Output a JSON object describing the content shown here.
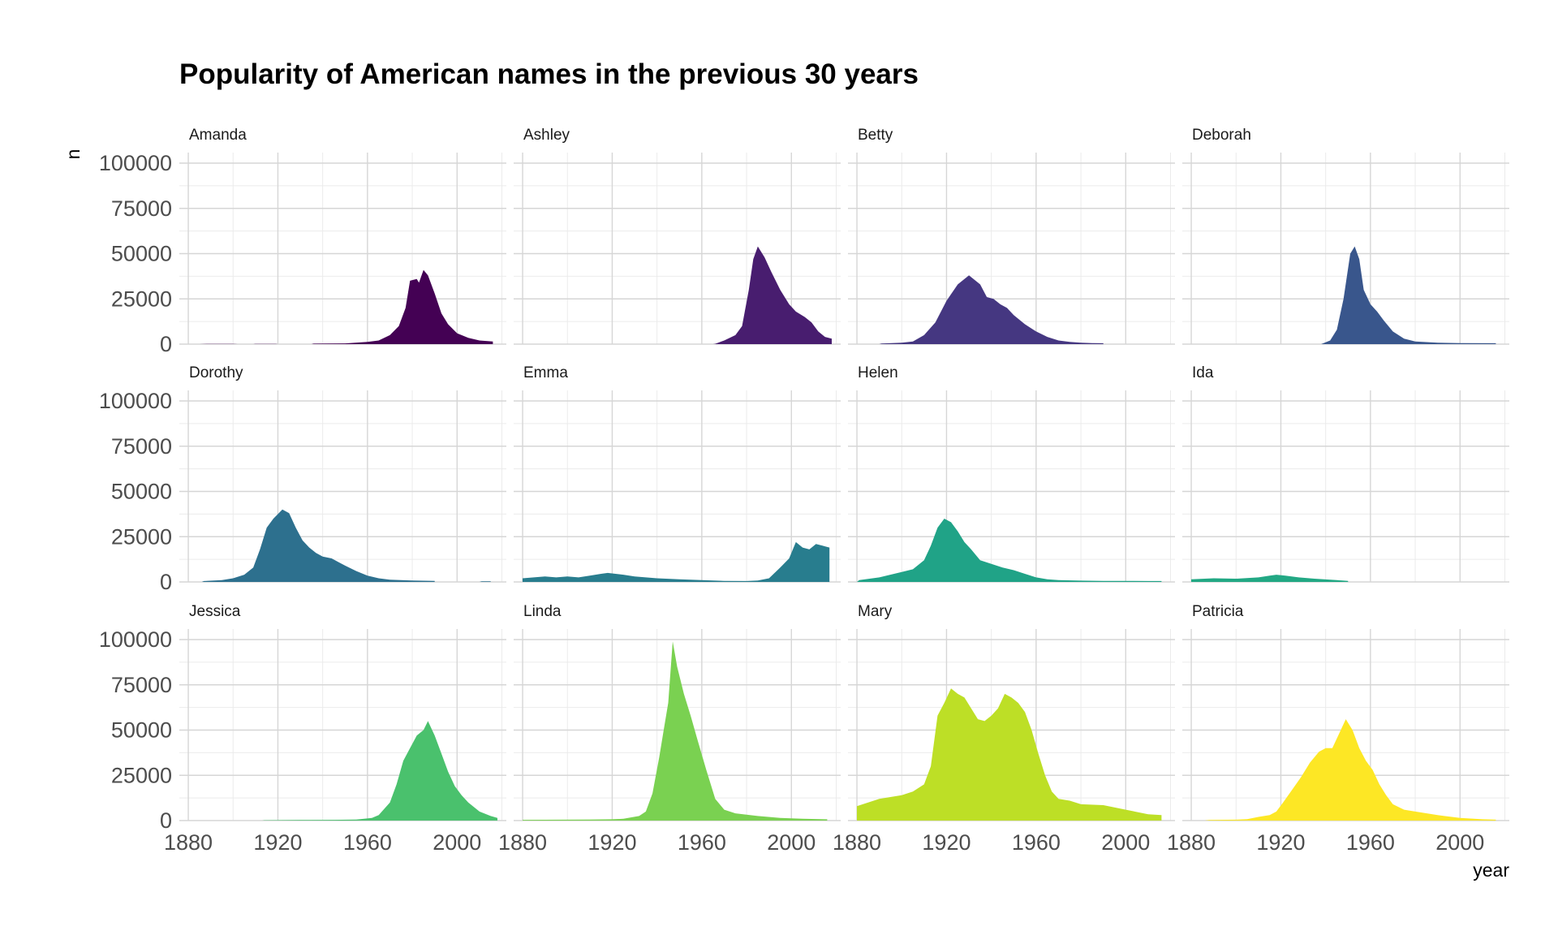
{
  "chart_data": {
    "type": "area",
    "title": "Popularity of American names in the previous 30 years",
    "xlabel": "year",
    "ylabel": "n",
    "xlim": [
      1876,
      2022
    ],
    "ylim": [
      0,
      100000
    ],
    "x_ticks": [
      1880,
      1920,
      1960,
      2000
    ],
    "y_ticks": [
      0,
      25000,
      50000,
      75000,
      100000
    ],
    "grid": true,
    "facets": [
      {
        "name": "Amanda",
        "color": "#440154",
        "points": [
          [
            1885,
            0
          ],
          [
            1889,
            150
          ],
          [
            1900,
            150
          ],
          [
            1902,
            0
          ],
          [
            1909,
            0
          ],
          [
            1910,
            130
          ],
          [
            1919,
            130
          ],
          [
            1920,
            0
          ],
          [
            1935,
            0
          ],
          [
            1936,
            250
          ],
          [
            1950,
            400
          ],
          [
            1960,
            1200
          ],
          [
            1965,
            2000
          ],
          [
            1970,
            5000
          ],
          [
            1974,
            10000
          ],
          [
            1977,
            20000
          ],
          [
            1979,
            35000
          ],
          [
            1982,
            36000
          ],
          [
            1983,
            34000
          ],
          [
            1985,
            41000
          ],
          [
            1987,
            38000
          ],
          [
            1990,
            28000
          ],
          [
            1993,
            17000
          ],
          [
            1996,
            11000
          ],
          [
            2000,
            6000
          ],
          [
            2005,
            3500
          ],
          [
            2010,
            2000
          ],
          [
            2016,
            1500
          ],
          [
            2016,
            0
          ]
        ]
      },
      {
        "name": "Ashley",
        "color": "#481d6f",
        "points": [
          [
            1965,
            0
          ],
          [
            1966,
            200
          ],
          [
            1970,
            2000
          ],
          [
            1975,
            5000
          ],
          [
            1978,
            10000
          ],
          [
            1981,
            30000
          ],
          [
            1983,
            47000
          ],
          [
            1985,
            54000
          ],
          [
            1988,
            48000
          ],
          [
            1991,
            40000
          ],
          [
            1995,
            30000
          ],
          [
            1999,
            22000
          ],
          [
            2002,
            18000
          ],
          [
            2006,
            15000
          ],
          [
            2009,
            12000
          ],
          [
            2012,
            7000
          ],
          [
            2015,
            4000
          ],
          [
            2018,
            3000
          ],
          [
            2018,
            0
          ]
        ]
      },
      {
        "name": "Betty",
        "color": "#453781",
        "points": [
          [
            1890,
            0
          ],
          [
            1891,
            300
          ],
          [
            1900,
            800
          ],
          [
            1905,
            1500
          ],
          [
            1910,
            5000
          ],
          [
            1915,
            12000
          ],
          [
            1920,
            24000
          ],
          [
            1925,
            33000
          ],
          [
            1930,
            38000
          ],
          [
            1935,
            33000
          ],
          [
            1938,
            26000
          ],
          [
            1941,
            25000
          ],
          [
            1944,
            22000
          ],
          [
            1947,
            20000
          ],
          [
            1950,
            16000
          ],
          [
            1955,
            11000
          ],
          [
            1960,
            7000
          ],
          [
            1965,
            4000
          ],
          [
            1970,
            2000
          ],
          [
            1975,
            1200
          ],
          [
            1980,
            800
          ],
          [
            1985,
            600
          ],
          [
            1990,
            500
          ],
          [
            1990,
            0
          ]
        ]
      },
      {
        "name": "Deborah",
        "color": "#39568c",
        "points": [
          [
            1938,
            0
          ],
          [
            1939,
            500
          ],
          [
            1942,
            2000
          ],
          [
            1945,
            8000
          ],
          [
            1948,
            25000
          ],
          [
            1951,
            50000
          ],
          [
            1953,
            54000
          ],
          [
            1955,
            47000
          ],
          [
            1957,
            30000
          ],
          [
            1960,
            22000
          ],
          [
            1963,
            18000
          ],
          [
            1966,
            13000
          ],
          [
            1970,
            7000
          ],
          [
            1975,
            3000
          ],
          [
            1980,
            1500
          ],
          [
            1990,
            800
          ],
          [
            2000,
            600
          ],
          [
            2016,
            500
          ],
          [
            2016,
            0
          ]
        ]
      },
      {
        "name": "Dorothy",
        "color": "#2d708e",
        "points": [
          [
            1886,
            0
          ],
          [
            1887,
            500
          ],
          [
            1895,
            1000
          ],
          [
            1900,
            2000
          ],
          [
            1905,
            4000
          ],
          [
            1909,
            8000
          ],
          [
            1912,
            18000
          ],
          [
            1915,
            30000
          ],
          [
            1918,
            35000
          ],
          [
            1922,
            40000
          ],
          [
            1925,
            38000
          ],
          [
            1928,
            30000
          ],
          [
            1931,
            23000
          ],
          [
            1934,
            19000
          ],
          [
            1937,
            16000
          ],
          [
            1940,
            14000
          ],
          [
            1944,
            13000
          ],
          [
            1947,
            11000
          ],
          [
            1950,
            9000
          ],
          [
            1955,
            6000
          ],
          [
            1960,
            3500
          ],
          [
            1965,
            2000
          ],
          [
            1970,
            1200
          ],
          [
            1980,
            800
          ],
          [
            1990,
            600
          ],
          [
            1990,
            0
          ],
          [
            2010,
            0
          ],
          [
            2011,
            300
          ],
          [
            2015,
            300
          ],
          [
            2015,
            0
          ]
        ]
      },
      {
        "name": "Emma",
        "color": "#287d8e",
        "points": [
          [
            1880,
            0
          ],
          [
            1880,
            2000
          ],
          [
            1885,
            2500
          ],
          [
            1890,
            3000
          ],
          [
            1895,
            2500
          ],
          [
            1900,
            3000
          ],
          [
            1905,
            2500
          ],
          [
            1910,
            3500
          ],
          [
            1915,
            4500
          ],
          [
            1918,
            5000
          ],
          [
            1925,
            4000
          ],
          [
            1930,
            3000
          ],
          [
            1940,
            2000
          ],
          [
            1950,
            1500
          ],
          [
            1960,
            1000
          ],
          [
            1970,
            600
          ],
          [
            1980,
            500
          ],
          [
            1985,
            800
          ],
          [
            1990,
            2000
          ],
          [
            1995,
            8000
          ],
          [
            1999,
            13000
          ],
          [
            2002,
            22000
          ],
          [
            2005,
            19000
          ],
          [
            2008,
            18000
          ],
          [
            2011,
            21000
          ],
          [
            2014,
            20000
          ],
          [
            2017,
            19000
          ],
          [
            2017,
            0
          ]
        ]
      },
      {
        "name": "Helen",
        "color": "#20a387",
        "points": [
          [
            1880,
            0
          ],
          [
            1881,
            1000
          ],
          [
            1890,
            2500
          ],
          [
            1900,
            5500
          ],
          [
            1905,
            7000
          ],
          [
            1910,
            12000
          ],
          [
            1913,
            20000
          ],
          [
            1916,
            30000
          ],
          [
            1919,
            35000
          ],
          [
            1922,
            33000
          ],
          [
            1925,
            28000
          ],
          [
            1928,
            22000
          ],
          [
            1931,
            18000
          ],
          [
            1935,
            12000
          ],
          [
            1940,
            10000
          ],
          [
            1945,
            8000
          ],
          [
            1950,
            6500
          ],
          [
            1955,
            4500
          ],
          [
            1960,
            2500
          ],
          [
            1965,
            1500
          ],
          [
            1970,
            1000
          ],
          [
            1980,
            700
          ],
          [
            1990,
            600
          ],
          [
            2000,
            600
          ],
          [
            2010,
            500
          ],
          [
            2016,
            500
          ],
          [
            2016,
            0
          ]
        ]
      },
      {
        "name": "Ida",
        "color": "#22a884",
        "points": [
          [
            1880,
            0
          ],
          [
            1880,
            1500
          ],
          [
            1890,
            2000
          ],
          [
            1900,
            1800
          ],
          [
            1910,
            2500
          ],
          [
            1915,
            3500
          ],
          [
            1918,
            4000
          ],
          [
            1922,
            3500
          ],
          [
            1928,
            2500
          ],
          [
            1935,
            1800
          ],
          [
            1945,
            1000
          ],
          [
            1950,
            600
          ],
          [
            1950,
            0
          ]
        ]
      },
      {
        "name": "Jessica",
        "color": "#4ac16d",
        "points": [
          [
            1913,
            0
          ],
          [
            1914,
            200
          ],
          [
            1930,
            300
          ],
          [
            1945,
            400
          ],
          [
            1955,
            600
          ],
          [
            1962,
            1500
          ],
          [
            1965,
            3000
          ],
          [
            1970,
            10000
          ],
          [
            1973,
            20000
          ],
          [
            1976,
            33000
          ],
          [
            1979,
            40000
          ],
          [
            1982,
            47000
          ],
          [
            1985,
            50000
          ],
          [
            1987,
            55000
          ],
          [
            1990,
            47000
          ],
          [
            1993,
            37000
          ],
          [
            1996,
            27000
          ],
          [
            1999,
            19000
          ],
          [
            2002,
            14000
          ],
          [
            2005,
            10000
          ],
          [
            2010,
            5000
          ],
          [
            2015,
            2500
          ],
          [
            2018,
            1500
          ],
          [
            2018,
            0
          ]
        ]
      },
      {
        "name": "Linda",
        "color": "#7ad151",
        "points": [
          [
            1880,
            0
          ],
          [
            1880,
            400
          ],
          [
            1910,
            600
          ],
          [
            1920,
            700
          ],
          [
            1925,
            1000
          ],
          [
            1932,
            2500
          ],
          [
            1935,
            5000
          ],
          [
            1938,
            15000
          ],
          [
            1941,
            35000
          ],
          [
            1943,
            50000
          ],
          [
            1945,
            65000
          ],
          [
            1947,
            99000
          ],
          [
            1949,
            85000
          ],
          [
            1952,
            70000
          ],
          [
            1955,
            58000
          ],
          [
            1958,
            45000
          ],
          [
            1962,
            28000
          ],
          [
            1966,
            12000
          ],
          [
            1970,
            6000
          ],
          [
            1975,
            4000
          ],
          [
            1985,
            2500
          ],
          [
            1995,
            1500
          ],
          [
            2005,
            1000
          ],
          [
            2016,
            700
          ],
          [
            2016,
            0
          ]
        ]
      },
      {
        "name": "Mary",
        "color": "#bddf26",
        "points": [
          [
            1880,
            0
          ],
          [
            1880,
            8000
          ],
          [
            1890,
            12000
          ],
          [
            1895,
            13000
          ],
          [
            1900,
            14000
          ],
          [
            1905,
            16000
          ],
          [
            1910,
            20000
          ],
          [
            1913,
            30000
          ],
          [
            1916,
            58000
          ],
          [
            1919,
            65000
          ],
          [
            1922,
            73000
          ],
          [
            1925,
            70000
          ],
          [
            1928,
            68000
          ],
          [
            1931,
            62000
          ],
          [
            1934,
            56000
          ],
          [
            1937,
            55000
          ],
          [
            1940,
            58000
          ],
          [
            1943,
            62000
          ],
          [
            1946,
            70000
          ],
          [
            1949,
            68000
          ],
          [
            1952,
            65000
          ],
          [
            1955,
            60000
          ],
          [
            1958,
            50000
          ],
          [
            1961,
            37000
          ],
          [
            1964,
            25000
          ],
          [
            1967,
            16000
          ],
          [
            1970,
            12000
          ],
          [
            1975,
            11000
          ],
          [
            1980,
            9000
          ],
          [
            1990,
            8500
          ],
          [
            2000,
            6000
          ],
          [
            2010,
            3500
          ],
          [
            2016,
            3000
          ],
          [
            2016,
            0
          ]
        ]
      },
      {
        "name": "Patricia",
        "color": "#fde725",
        "points": [
          [
            1886,
            0
          ],
          [
            1888,
            300
          ],
          [
            1900,
            500
          ],
          [
            1905,
            800
          ],
          [
            1910,
            2000
          ],
          [
            1915,
            3000
          ],
          [
            1918,
            5000
          ],
          [
            1921,
            10000
          ],
          [
            1925,
            17000
          ],
          [
            1929,
            24000
          ],
          [
            1933,
            32000
          ],
          [
            1937,
            38000
          ],
          [
            1940,
            40000
          ],
          [
            1943,
            40000
          ],
          [
            1946,
            48000
          ],
          [
            1949,
            56000
          ],
          [
            1952,
            50000
          ],
          [
            1955,
            40000
          ],
          [
            1958,
            33000
          ],
          [
            1961,
            28000
          ],
          [
            1964,
            20000
          ],
          [
            1967,
            14000
          ],
          [
            1970,
            9000
          ],
          [
            1975,
            6000
          ],
          [
            1980,
            5000
          ],
          [
            1990,
            3000
          ],
          [
            2000,
            1500
          ],
          [
            2010,
            700
          ],
          [
            2016,
            500
          ],
          [
            2016,
            0
          ]
        ]
      }
    ]
  }
}
